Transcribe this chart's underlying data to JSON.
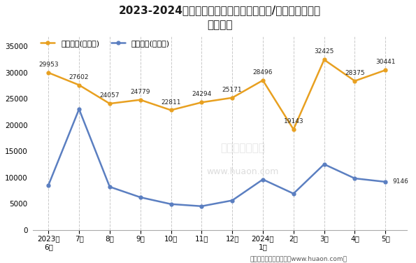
{
  "title_line1": "2023-2024年宁夏回族自治区（境内目的地/货源地）进、出",
  "title_line2": "口额统计",
  "x_labels": [
    "2023年\n6月",
    "7月",
    "8月",
    "9月",
    "10月",
    "11月",
    "12月",
    "2024年\n1月",
    "2月",
    "3月",
    "4月",
    "5月"
  ],
  "export_values": [
    29953,
    27602,
    24057,
    24779,
    22811,
    24294,
    25171,
    28496,
    19143,
    32425,
    28375,
    30441
  ],
  "import_values": [
    8500,
    23000,
    8200,
    6200,
    4900,
    4500,
    5600,
    9600,
    6900,
    12500,
    9800,
    9146
  ],
  "export_label": "出口总额(万美元)",
  "import_label": "进口总额(万美元)",
  "export_color": "#E8A020",
  "import_color": "#5B7FC1",
  "ylim": [
    0,
    37000
  ],
  "yticks": [
    0,
    5000,
    10000,
    15000,
    20000,
    25000,
    30000,
    35000
  ],
  "background_color": "#FFFFFF",
  "grid_color": "#BBBBBB",
  "footer": "制图：华经产业研究院（www.huaon.com）",
  "watermark1": "华经产业研究院",
  "watermark2": "www.huaon.com"
}
